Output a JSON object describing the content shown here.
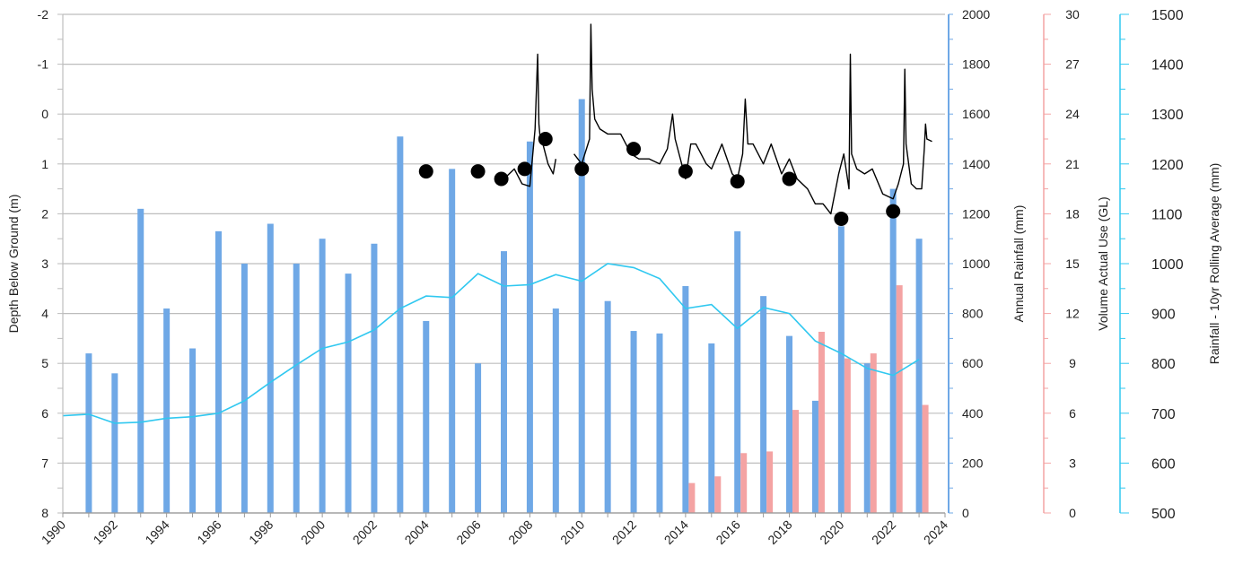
{
  "chart_data": {
    "type": "combo",
    "axes": {
      "x": {
        "min": 1990,
        "max": 2024,
        "ticks": [
          "1990",
          "1992",
          "1994",
          "1996",
          "1998",
          "2000",
          "2002",
          "2004",
          "2006",
          "2008",
          "2010",
          "2012",
          "2014",
          "2016",
          "2018",
          "2020",
          "2022",
          "2024"
        ]
      },
      "depth": {
        "label": "Depth Below Ground (m)",
        "min": -2,
        "max": 8,
        "inverted": true,
        "ticks": [
          "-2",
          "-1",
          "0",
          "1",
          "2",
          "3",
          "4",
          "5",
          "6",
          "7",
          "8"
        ]
      },
      "rainfall": {
        "label": "Annual Rainfall (mm)",
        "min": 0,
        "max": 2000,
        "ticks": [
          "0",
          "200",
          "400",
          "600",
          "800",
          "1000",
          "1200",
          "1400",
          "1600",
          "1800",
          "2000"
        ],
        "color": "#6fa8e6"
      },
      "volume": {
        "label": "Volume Actual Use (GL)",
        "min": 0,
        "max": 30,
        "ticks": [
          "0",
          "3",
          "6",
          "9",
          "12",
          "15",
          "18",
          "21",
          "24",
          "27",
          "30"
        ],
        "color": "#f4a3a3"
      },
      "rolling": {
        "label": "Rainfall - 10yr Rolling Average (mm)",
        "min": 500,
        "max": 1500,
        "ticks": [
          "500",
          "600",
          "700",
          "800",
          "900",
          "1000",
          "1100",
          "1200",
          "1300",
          "1400",
          "1500"
        ],
        "color": "#30c8f0"
      }
    },
    "grid": true,
    "annual_rainfall": {
      "years": [
        1991,
        1992,
        1993,
        1994,
        1995,
        1996,
        1997,
        1998,
        1999,
        2000,
        2001,
        2002,
        2003,
        2004,
        2005,
        2006,
        2007,
        2008,
        2009,
        2010,
        2011,
        2012,
        2013,
        2014,
        2015,
        2016,
        2017,
        2018,
        2019,
        2020,
        2021,
        2022,
        2023
      ],
      "values": [
        640,
        560,
        1220,
        820,
        660,
        1130,
        1000,
        1160,
        1000,
        1100,
        960,
        1080,
        1510,
        770,
        1380,
        600,
        1050,
        1490,
        820,
        1660,
        850,
        730,
        720,
        910,
        680,
        1130,
        870,
        710,
        450,
        1150,
        600,
        1300,
        1100
      ]
    },
    "volume_actual_use": {
      "years": [
        2014,
        2015,
        2016,
        2017,
        2018,
        2019,
        2020,
        2021,
        2022,
        2023
      ],
      "values": [
        1.8,
        2.2,
        3.6,
        3.7,
        6.2,
        10.9,
        9.3,
        9.6,
        13.7,
        6.5
      ]
    },
    "rolling_average": {
      "years": [
        1990,
        1991,
        1992,
        1993,
        1994,
        1995,
        1996,
        1997,
        1998,
        1999,
        2000,
        2001,
        2002,
        2003,
        2004,
        2005,
        2006,
        2007,
        2008,
        2009,
        2010,
        2011,
        2012,
        2013,
        2014,
        2015,
        2016,
        2017,
        2018,
        2019,
        2020,
        2021,
        2022,
        2023
      ],
      "values": [
        695,
        698,
        680,
        682,
        690,
        693,
        700,
        725,
        762,
        797,
        830,
        843,
        867,
        910,
        935,
        932,
        980,
        955,
        958,
        978,
        965,
        1000,
        992,
        970,
        910,
        918,
        870,
        912,
        900,
        845,
        820,
        790,
        776,
        808
      ]
    },
    "depth_continuous": {
      "segments": [
        {
          "x": [
            2006.8,
            2007.1,
            2007.4,
            2007.7,
            2008.0,
            2008.2,
            2008.3,
            2008.35,
            2008.4,
            2008.5,
            2008.7,
            2008.9,
            2009.0
          ],
          "y": [
            1.35,
            1.25,
            1.1,
            1.4,
            1.45,
            0.3,
            -1.2,
            0.2,
            0.5,
            0.6,
            1.0,
            1.2,
            0.9
          ]
        },
        {
          "x": [
            2009.7,
            2010.0,
            2010.3,
            2010.35,
            2010.4,
            2010.5,
            2010.7,
            2011.0,
            2011.5,
            2011.9,
            2012.2,
            2012.6,
            2013.0,
            2013.3,
            2013.5,
            2013.6,
            2013.8,
            2014.0,
            2014.2,
            2014.4,
            2014.8,
            2015.0,
            2015.4,
            2015.8,
            2016.0,
            2016.2,
            2016.3,
            2016.4,
            2016.6,
            2017.0,
            2017.3,
            2017.7,
            2018.0,
            2018.3,
            2018.7,
            2019.0,
            2019.3,
            2019.6,
            2019.9,
            2020.1,
            2020.3,
            2020.35,
            2020.4,
            2020.6,
            2020.9,
            2021.2,
            2021.6,
            2022.0,
            2022.2,
            2022.4,
            2022.45,
            2022.5,
            2022.7,
            2022.9,
            2023.1,
            2023.2,
            2023.25,
            2023.3,
            2023.5
          ],
          "y": [
            0.8,
            1.0,
            0.5,
            -1.8,
            -0.5,
            0.1,
            0.3,
            0.4,
            0.4,
            0.8,
            0.9,
            0.9,
            1.0,
            0.7,
            0.0,
            0.5,
            0.9,
            1.3,
            0.6,
            0.6,
            1.0,
            1.1,
            0.6,
            1.2,
            1.3,
            0.8,
            -0.3,
            0.6,
            0.6,
            1.0,
            0.6,
            1.2,
            0.9,
            1.3,
            1.5,
            1.8,
            1.8,
            2.0,
            1.2,
            0.8,
            1.5,
            -1.2,
            0.8,
            1.1,
            1.2,
            1.1,
            1.6,
            1.7,
            1.4,
            1.0,
            -0.9,
            0.6,
            1.4,
            1.5,
            1.5,
            0.7,
            0.2,
            0.5,
            0.55
          ]
        }
      ]
    },
    "depth_points": {
      "x": [
        2004.0,
        2006.0,
        2006.9,
        2007.8,
        2008.6,
        2010.0,
        2012.0,
        2014.0,
        2016.0,
        2018.0,
        2020.0,
        2022.0
      ],
      "y": [
        1.15,
        1.15,
        1.3,
        1.1,
        0.5,
        1.1,
        0.7,
        1.15,
        1.35,
        1.3,
        2.1,
        1.95
      ]
    }
  }
}
